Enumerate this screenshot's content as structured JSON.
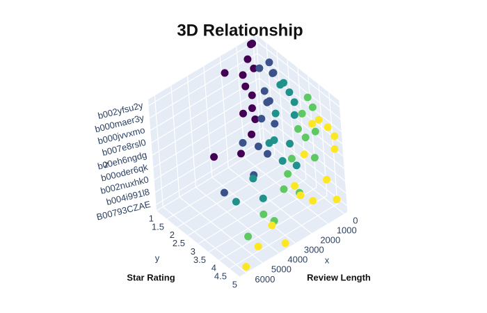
{
  "chart_data": {
    "type": "scatter3d",
    "title": "3D Relationship",
    "x_axis_title": "x",
    "y_axis_title": "y",
    "z_axis_title": "z",
    "annotations": [
      "Review Length",
      "Star Rating"
    ],
    "xlim": [
      -200,
      6400
    ],
    "xticks": [
      0,
      1000,
      2000,
      3000,
      4000,
      5000,
      6000
    ],
    "ylim": [
      1,
      5
    ],
    "yticks": [
      1,
      1.5,
      2,
      2.5,
      3,
      3.5,
      4,
      4.5,
      5
    ],
    "zcategories": [
      "B00793CZAE",
      "b004i991l8",
      "b002nuxhk0",
      "b00oder6qk",
      "b00eh6ngdg",
      "b007e8rsl0",
      "b000jvvxmo",
      "b000maer3y",
      "b002yfsu2y"
    ],
    "wall_color": "#e5ecf6",
    "series": [
      {
        "color": "#440154",
        "x": [
          150,
          400,
          80,
          650,
          300,
          900,
          220,
          500,
          1200,
          60,
          750,
          350,
          2800,
          1800
        ],
        "y": [
          1,
          1,
          1,
          1,
          1,
          1,
          1,
          1,
          1,
          1,
          1,
          1,
          1,
          1
        ],
        "z": [
          "b002yfsu2y",
          "b000maer3y",
          "b000jvvxmo",
          "b007e8rsl0",
          "b00eh6ngdg",
          "b00oder6qk",
          "b002nuxhk0",
          "b004i991l8",
          "B00793CZAE",
          "b002yfsu2y",
          "b000jvvxmo",
          "b00oder6qk",
          "b004i991l8",
          "b000maer3y"
        ]
      },
      {
        "color": "#3b528b",
        "x": [
          300,
          700,
          150,
          1000,
          450,
          1300,
          250,
          800,
          1700,
          100,
          2200,
          600,
          3500,
          900
        ],
        "y": [
          2,
          2,
          2,
          2,
          2,
          2,
          2,
          2,
          2,
          2,
          2,
          2,
          2,
          2
        ],
        "z": [
          "b002yfsu2y",
          "b000jvvxmo",
          "b000maer3y",
          "b00eh6ngdg",
          "b007e8rsl0",
          "b002nuxhk0",
          "b00oder6qk",
          "b004i991l8",
          "B00793CZAE",
          "b000maer3y",
          "b00oder6qk",
          "b007e8rsl0",
          "B00793CZAE",
          "b002yfsu2y"
        ]
      },
      {
        "color": "#21918c",
        "x": [
          400,
          900,
          200,
          1300,
          600,
          1800,
          300,
          1100,
          2400,
          150,
          2900,
          700,
          4000,
          1500
        ],
        "y": [
          3,
          3,
          3,
          3,
          3,
          3,
          3,
          3,
          3,
          3,
          3,
          3,
          3,
          3
        ],
        "z": [
          "b000maer3y",
          "b002yfsu2y",
          "b007e8rsl0",
          "b000jvvxmo",
          "b00oder6qk",
          "b00eh6ngdg",
          "b004i991l8",
          "b002nuxhk0",
          "B00793CZAE",
          "b000jvvxmo",
          "b002nuxhk0",
          "b002yfsu2y",
          "b004i991l8",
          "b00eh6ngdg"
        ]
      },
      {
        "color": "#5ec962",
        "x": [
          500,
          1200,
          250,
          1700,
          800,
          2300,
          350,
          1400,
          3000,
          200,
          3600,
          900,
          4600,
          2000
        ],
        "y": [
          4,
          4,
          4,
          4,
          4,
          4,
          4,
          4,
          4,
          4,
          4,
          4,
          4,
          4
        ],
        "z": [
          "b002yfsu2y",
          "b000jvvxmo",
          "b000maer3y",
          "b00eh6ngdg",
          "b007e8rsl0",
          "b002nuxhk0",
          "b00oder6qk",
          "b004i991l8",
          "B00793CZAE",
          "b007e8rsl0",
          "b004i991l8",
          "b000maer3y",
          "B00793CZAE",
          "b00oder6qk"
        ]
      },
      {
        "color": "#fde725",
        "x": [
          600,
          1500,
          300,
          2100,
          900,
          2800,
          400,
          1800,
          3600,
          250,
          4300,
          1100,
          6000,
          2500,
          5200
        ],
        "y": [
          5,
          5,
          5,
          5,
          5,
          5,
          5,
          5,
          5,
          5,
          5,
          5,
          5,
          5,
          5
        ],
        "z": [
          "b000maer3y",
          "b002yfsu2y",
          "b007e8rsl0",
          "b000jvvxmo",
          "b00oder6qk",
          "b00eh6ngdg",
          "b004i991l8",
          "b002nuxhk0",
          "B00793CZAE",
          "b000jvvxmo",
          "b002nuxhk0",
          "b002yfsu2y",
          "B00793CZAE",
          "b00oder6qk",
          "b004i991l8"
        ]
      }
    ]
  }
}
